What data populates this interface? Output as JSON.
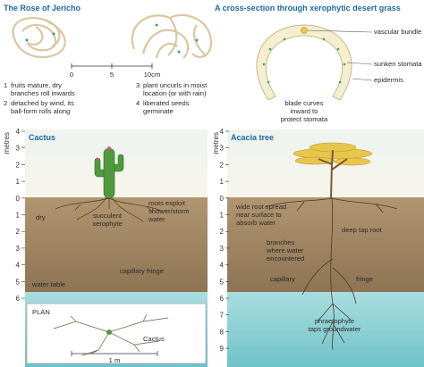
{
  "rose_of_jericho": {
    "title": "The Rose of Jericho",
    "scale": [
      "0",
      "5",
      "10cm"
    ],
    "steps": [
      {
        "number": "1",
        "lines": [
          "fruits mature, dry",
          "branches roll inwards"
        ]
      },
      {
        "number": "2",
        "lines": [
          "detached by wind, its",
          "ball-form rolls along"
        ]
      },
      {
        "number": "3",
        "lines": [
          "plant uncurls in moist",
          "location (or with rain)"
        ]
      },
      {
        "number": "4",
        "lines": [
          "liberated seeds",
          "germinate"
        ]
      }
    ]
  },
  "grass_cross_section": {
    "title": "A cross-section through xerophytic desert grass",
    "vascular_bundle": "vascular bundle",
    "sunken_stomata": "sunken stomata",
    "epidermis": "epidermis",
    "blade_note": [
      "blade curves",
      "inward to",
      "protect stomata"
    ]
  },
  "cactus_panel": {
    "title": "Cactus",
    "axis_label": "metres",
    "depth_ticks": [
      4,
      3,
      2,
      1,
      0,
      1,
      2,
      3,
      4,
      5,
      6
    ],
    "dry": "dry",
    "plant": [
      "succulent",
      "xerophyte"
    ],
    "roots": [
      "roots exploit",
      "shower/storm",
      "water"
    ],
    "capillary_fringe": "capillary fringe",
    "water_table": "water table",
    "plan": {
      "title": "PLAN",
      "label": "Cactus",
      "scale": "1 m"
    }
  },
  "acacia_panel": {
    "title": "Acacia tree",
    "axis_label": "metres",
    "depth_ticks": [
      4,
      3,
      2,
      1,
      0,
      1,
      2,
      3,
      4,
      5,
      6,
      7,
      8,
      9
    ],
    "wide_roots": [
      "wide root spread",
      "near surface to",
      "absorb water"
    ],
    "tap_root": "deep tap root",
    "branches": [
      "branches",
      "where water",
      "encountered"
    ],
    "capillary": "capillary",
    "fringe": "fringe",
    "phreatophyte": [
      "phraetophyte",
      "taps groundwater"
    ]
  }
}
